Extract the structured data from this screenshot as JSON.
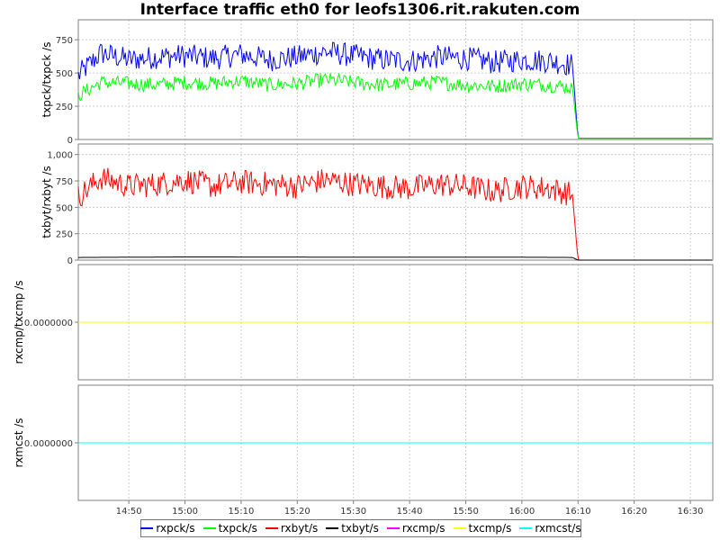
{
  "title": "Interface traffic eth0 for leofs1306.rit.rakuten.com",
  "colors": {
    "rxpck": "#0000ff",
    "txpck": "#00ff00",
    "rxbyt": "#ff0000",
    "txbyt": "#000000",
    "rxcmp": "#ff00ff",
    "txcmp": "#ffff00",
    "rxmcst": "#00ffff",
    "grid": "#cccccc",
    "plot_border": "#808080"
  },
  "legend": [
    {
      "key": "rxpck",
      "label": "rxpck/s"
    },
    {
      "key": "txpck",
      "label": "txpck/s"
    },
    {
      "key": "rxbyt",
      "label": "rxbyt/s"
    },
    {
      "key": "txbyt",
      "label": "txbyt/s"
    },
    {
      "key": "rxcmp",
      "label": "rxcmp/s"
    },
    {
      "key": "txcmp",
      "label": "txcmp/s"
    },
    {
      "key": "rxmcst",
      "label": "rxmcst/s"
    }
  ],
  "chart_data": {
    "type": "line",
    "x_axis": {
      "min": "14:41",
      "max": "16:34",
      "ticks": [
        "14:50",
        "15:00",
        "15:10",
        "15:20",
        "15:30",
        "15:40",
        "15:50",
        "16:00",
        "16:10",
        "16:20",
        "16:30"
      ]
    },
    "grid": true,
    "legend_position": "bottom",
    "panels": [
      {
        "ylabel": "txpck/txpck /s",
        "ylim": [
          0,
          900
        ],
        "yticks": [
          {
            "value": 0,
            "label": "0"
          },
          {
            "value": 250,
            "label": "250"
          },
          {
            "value": 500,
            "label": "500"
          },
          {
            "value": 750,
            "label": "750"
          }
        ],
        "series": [
          {
            "key": "rxpck",
            "name": "rxpck/s",
            "points": [
              [
                "14:41",
                480
              ],
              [
                "14:45",
                650
              ],
              [
                "14:50",
                600
              ],
              [
                "14:55",
                620
              ],
              [
                "15:00",
                630
              ],
              [
                "15:05",
                610
              ],
              [
                "15:10",
                640
              ],
              [
                "15:15",
                600
              ],
              [
                "15:20",
                620
              ],
              [
                "15:25",
                660
              ],
              [
                "15:30",
                630
              ],
              [
                "15:35",
                600
              ],
              [
                "15:40",
                590
              ],
              [
                "15:45",
                620
              ],
              [
                "15:50",
                610
              ],
              [
                "15:55",
                580
              ],
              [
                "16:00",
                600
              ],
              [
                "16:05",
                590
              ],
              [
                "16:09",
                560
              ],
              [
                "16:10",
                10
              ],
              [
                "16:34",
                10
              ]
            ]
          },
          {
            "key": "txpck",
            "name": "txpck/s",
            "points": [
              [
                "14:41",
                330
              ],
              [
                "14:45",
                430
              ],
              [
                "14:50",
                420
              ],
              [
                "14:55",
                410
              ],
              [
                "15:00",
                430
              ],
              [
                "15:05",
                420
              ],
              [
                "15:10",
                440
              ],
              [
                "15:15",
                410
              ],
              [
                "15:20",
                420
              ],
              [
                "15:25",
                450
              ],
              [
                "15:30",
                430
              ],
              [
                "15:35",
                410
              ],
              [
                "15:40",
                420
              ],
              [
                "15:45",
                430
              ],
              [
                "15:50",
                410
              ],
              [
                "15:55",
                400
              ],
              [
                "16:00",
                420
              ],
              [
                "16:05",
                410
              ],
              [
                "16:09",
                390
              ],
              [
                "16:10",
                8
              ],
              [
                "16:34",
                8
              ]
            ]
          }
        ]
      },
      {
        "ylabel": "txbyt/rxbyt /s",
        "ylim": [
          0,
          1100
        ],
        "yticks": [
          {
            "value": 0,
            "label": "0"
          },
          {
            "value": 250,
            "label": "250"
          },
          {
            "value": 500,
            "label": "500"
          },
          {
            "value": 750,
            "label": "750"
          },
          {
            "value": 1000,
            "label": "1,000"
          }
        ],
        "series": [
          {
            "key": "rxbyt",
            "name": "rxbyt/s",
            "points": [
              [
                "14:41",
                600
              ],
              [
                "14:45",
                780
              ],
              [
                "14:50",
                700
              ],
              [
                "14:55",
                720
              ],
              [
                "15:00",
                760
              ],
              [
                "15:05",
                700
              ],
              [
                "15:10",
                740
              ],
              [
                "15:15",
                720
              ],
              [
                "15:20",
                700
              ],
              [
                "15:25",
                760
              ],
              [
                "15:30",
                720
              ],
              [
                "15:35",
                700
              ],
              [
                "15:40",
                680
              ],
              [
                "15:45",
                720
              ],
              [
                "15:50",
                700
              ],
              [
                "15:55",
                650
              ],
              [
                "16:00",
                700
              ],
              [
                "16:05",
                680
              ],
              [
                "16:09",
                620
              ],
              [
                "16:10",
                0
              ],
              [
                "16:34",
                0
              ]
            ]
          },
          {
            "key": "txbyt",
            "name": "txbyt/s",
            "points": [
              [
                "14:41",
                25
              ],
              [
                "15:00",
                30
              ],
              [
                "15:30",
                28
              ],
              [
                "16:00",
                27
              ],
              [
                "16:09",
                25
              ],
              [
                "16:10",
                0
              ],
              [
                "16:34",
                0
              ]
            ]
          }
        ]
      },
      {
        "ylabel": "rxcmp/txcmp /s",
        "yticks": [
          {
            "value": 0,
            "label": "0.0000000"
          }
        ],
        "series": [
          {
            "key": "rxcmp",
            "name": "rxcmp/s",
            "points": [
              [
                "14:41",
                0
              ],
              [
                "16:34",
                0
              ]
            ]
          },
          {
            "key": "txcmp",
            "name": "txcmp/s",
            "points": [
              [
                "14:41",
                0
              ],
              [
                "16:34",
                0
              ]
            ]
          }
        ]
      },
      {
        "ylabel": "rxmcst /s",
        "yticks": [
          {
            "value": 0,
            "label": "0.0000000"
          }
        ],
        "series": [
          {
            "key": "rxmcst",
            "name": "rxmcst/s",
            "points": [
              [
                "14:41",
                0
              ],
              [
                "16:34",
                0
              ]
            ]
          }
        ]
      }
    ]
  }
}
